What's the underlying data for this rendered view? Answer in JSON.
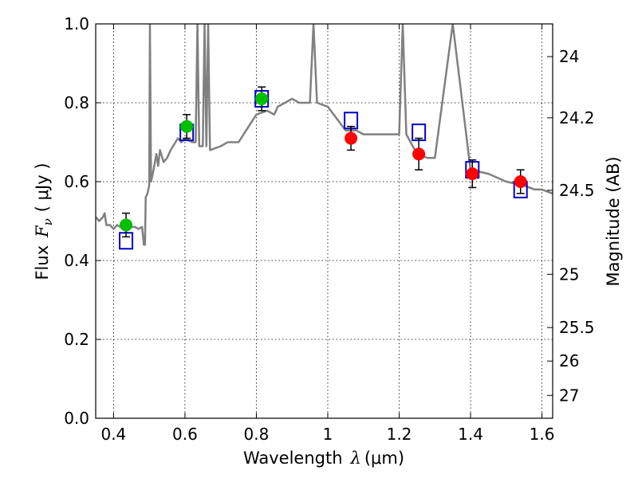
{
  "chart_data": {
    "type": "scatter",
    "xlabel_text": "Wavelength",
    "xlabel_symbol": "λ",
    "xlabel_unit": "(μm)",
    "ylabel_text": "Flux",
    "ylabel_symbol": "F",
    "ylabel_subscript": "ν",
    "ylabel_unit": "( μJy )",
    "y2label": "Magnitude (AB)",
    "xlim": [
      0.35,
      1.63
    ],
    "ylim": [
      0.0,
      1.0
    ],
    "grid": true,
    "x_ticks": [
      0.4,
      0.6,
      0.8,
      1.0,
      1.2,
      1.4,
      1.6
    ],
    "x_tick_labels": [
      "0.4",
      "0.6",
      "0.8",
      "1",
      "1.2",
      "1.4",
      "1.6"
    ],
    "y_ticks": [
      0.0,
      0.2,
      0.4,
      0.6,
      0.8,
      1.0
    ],
    "y_tick_labels": [
      "0.0",
      "0.2",
      "0.4",
      "0.6",
      "0.8",
      "1.0"
    ],
    "y2_ticks": [
      {
        "flux": 0.917,
        "label": "24"
      },
      {
        "flux": 0.762,
        "label": "24.2"
      },
      {
        "flux": 0.578,
        "label": "24.5"
      },
      {
        "flux": 0.365,
        "label": "25"
      },
      {
        "flux": 0.23,
        "label": "25.5"
      },
      {
        "flux": 0.145,
        "label": "26"
      },
      {
        "flux": 0.058,
        "label": "27"
      }
    ],
    "series": [
      {
        "kind": "spectrum",
        "color": "#808080",
        "x": [
          0.35,
          0.36,
          0.37,
          0.375,
          0.38,
          0.39,
          0.4,
          0.41,
          0.42,
          0.43,
          0.44,
          0.45,
          0.46,
          0.47,
          0.48,
          0.485,
          0.488,
          0.49,
          0.495,
          0.5,
          0.502,
          0.505,
          0.51,
          0.52,
          0.525,
          0.53,
          0.54,
          0.55,
          0.56,
          0.58,
          0.59,
          0.6,
          0.62,
          0.63,
          0.635,
          0.64,
          0.645,
          0.65,
          0.655,
          0.66,
          0.665,
          0.67,
          0.7,
          0.72,
          0.75,
          0.8,
          0.83,
          0.85,
          0.86,
          0.88,
          0.9,
          0.92,
          0.95,
          0.96,
          0.97,
          1.0,
          1.05,
          1.08,
          1.1,
          1.15,
          1.2,
          1.21,
          1.22,
          1.25,
          1.28,
          1.3,
          1.35,
          1.4,
          1.45,
          1.5,
          1.55,
          1.58,
          1.6,
          1.63
        ],
        "y": [
          0.51,
          0.5,
          0.51,
          0.52,
          0.49,
          0.49,
          0.48,
          0.49,
          0.485,
          0.48,
          0.49,
          0.485,
          0.485,
          0.48,
          0.485,
          0.44,
          0.44,
          0.56,
          0.57,
          0.59,
          1.0,
          0.6,
          0.62,
          0.67,
          0.64,
          0.68,
          0.65,
          0.66,
          0.68,
          0.71,
          0.7,
          0.71,
          0.7,
          0.7,
          1.0,
          0.69,
          0.69,
          0.69,
          1.0,
          0.69,
          1.0,
          0.68,
          0.69,
          0.7,
          0.7,
          0.77,
          0.78,
          0.77,
          0.79,
          0.8,
          0.81,
          0.8,
          0.8,
          1.0,
          0.8,
          0.79,
          0.73,
          0.73,
          0.72,
          0.72,
          0.72,
          1.0,
          0.72,
          0.67,
          0.66,
          0.66,
          1.0,
          0.63,
          0.62,
          0.6,
          0.59,
          0.58,
          0.58,
          0.57
        ]
      },
      {
        "kind": "observed",
        "name": "",
        "color": "#00c000",
        "points": [
          {
            "x": 0.435,
            "y": 0.49,
            "err": 0.03
          },
          {
            "x": 0.605,
            "y": 0.74,
            "err": 0.03
          },
          {
            "x": 0.815,
            "y": 0.81,
            "err": 0.03
          }
        ]
      },
      {
        "kind": "observed",
        "name": "",
        "color": "#ff0000",
        "points": [
          {
            "x": 1.065,
            "y": 0.71,
            "err": 0.03
          },
          {
            "x": 1.255,
            "y": 0.67,
            "err": 0.04
          },
          {
            "x": 1.405,
            "y": 0.62,
            "err": 0.035
          },
          {
            "x": 1.54,
            "y": 0.6,
            "err": 0.03
          }
        ]
      },
      {
        "kind": "model",
        "name": "",
        "color": "#0000cc",
        "points": [
          {
            "x": 0.435,
            "y": 0.45
          },
          {
            "x": 0.605,
            "y": 0.725
          },
          {
            "x": 0.815,
            "y": 0.81
          },
          {
            "x": 1.065,
            "y": 0.755
          },
          {
            "x": 1.255,
            "y": 0.725
          },
          {
            "x": 1.405,
            "y": 0.63
          },
          {
            "x": 1.54,
            "y": 0.58
          }
        ]
      }
    ]
  }
}
